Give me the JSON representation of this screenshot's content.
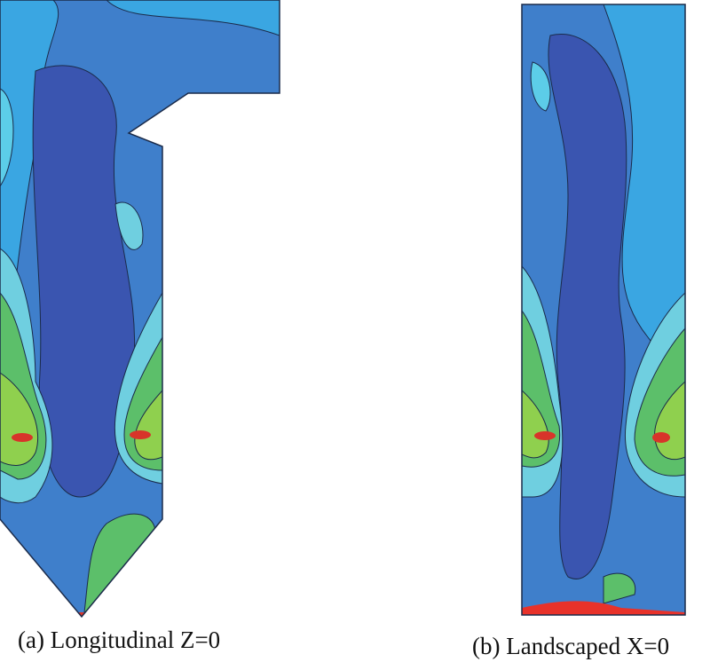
{
  "captions": {
    "a": "(a) Longitudinal Z=0",
    "b": "(b) Landscaped X=0"
  }
}
